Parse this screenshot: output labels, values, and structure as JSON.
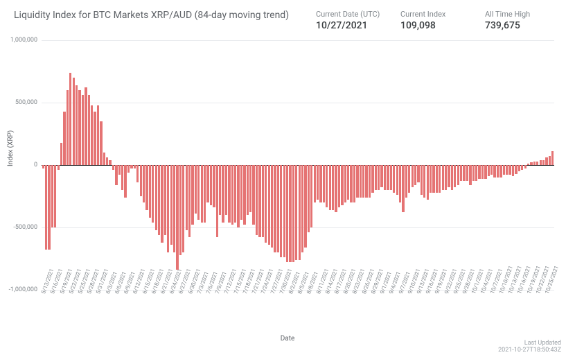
{
  "header": {
    "title": "Liquidity Index for BTC Markets XRP/AUD (84-day moving trend)",
    "metrics": [
      {
        "label": "Current Date (UTC)",
        "value": "10/27/2021"
      },
      {
        "label": "Current Index",
        "value": "109,098"
      },
      {
        "label": "All Time High",
        "value": "739,675"
      }
    ]
  },
  "chart": {
    "type": "bar",
    "ylabel": "Index (XRP)",
    "xlabel": "Date",
    "ylim": [
      -1000000,
      1000000
    ],
    "yticks": [
      -1000000,
      -500000,
      0,
      500000,
      1000000
    ],
    "ytick_labels": [
      "-1,000,000",
      "-500,000",
      "0",
      "500,000",
      "1,000,000"
    ],
    "xtick_every": 3,
    "bar_color": "#e57373",
    "grid_color": "#e8eaed",
    "zero_line_color": "#202124",
    "background_color": "#ffffff",
    "title_fontsize": 14,
    "label_fontsize": 10,
    "tick_fontsize": 9,
    "bar_gap_ratio": 0.25,
    "dates": [
      "5/13/2021",
      "5/14/2021",
      "5/15/2021",
      "5/16/2021",
      "5/17/2021",
      "5/18/2021",
      "5/19/2021",
      "5/20/2021",
      "5/21/2021",
      "5/22/2021",
      "5/23/2021",
      "5/24/2021",
      "5/25/2021",
      "5/26/2021",
      "5/27/2021",
      "5/28/2021",
      "5/29/2021",
      "5/30/2021",
      "5/31/2021",
      "6/1/2021",
      "6/2/2021",
      "6/3/2021",
      "6/4/2021",
      "6/5/2021",
      "6/6/2021",
      "6/7/2021",
      "6/8/2021",
      "6/9/2021",
      "6/10/2021",
      "6/11/2021",
      "6/12/2021",
      "6/13/2021",
      "6/14/2021",
      "6/15/2021",
      "6/16/2021",
      "6/17/2021",
      "6/18/2021",
      "6/19/2021",
      "6/20/2021",
      "6/21/2021",
      "6/22/2021",
      "6/23/2021",
      "6/24/2021",
      "6/25/2021",
      "6/26/2021",
      "6/27/2021",
      "6/28/2021",
      "6/29/2021",
      "6/30/2021",
      "7/1/2021",
      "7/2/2021",
      "7/3/2021",
      "7/4/2021",
      "7/5/2021",
      "7/6/2021",
      "7/7/2021",
      "7/8/2021",
      "7/9/2021",
      "7/10/2021",
      "7/11/2021",
      "7/12/2021",
      "7/13/2021",
      "7/14/2021",
      "7/15/2021",
      "7/16/2021",
      "7/17/2021",
      "7/18/2021",
      "7/19/2021",
      "7/20/2021",
      "7/21/2021",
      "7/22/2021",
      "7/23/2021",
      "7/24/2021",
      "7/25/2021",
      "7/26/2021",
      "7/27/2021",
      "7/28/2021",
      "7/29/2021",
      "7/30/2021",
      "7/31/2021",
      "8/1/2021",
      "8/2/2021",
      "8/3/2021",
      "8/4/2021",
      "8/5/2021",
      "8/6/2021",
      "8/7/2021",
      "8/8/2021",
      "8/9/2021",
      "8/10/2021",
      "8/11/2021",
      "8/12/2021",
      "8/13/2021",
      "8/14/2021",
      "8/15/2021",
      "8/16/2021",
      "8/17/2021",
      "8/18/2021",
      "8/19/2021",
      "8/20/2021",
      "8/21/2021",
      "8/22/2021",
      "8/23/2021",
      "8/24/2021",
      "8/25/2021",
      "8/26/2021",
      "8/27/2021",
      "8/28/2021",
      "8/29/2021",
      "8/30/2021",
      "8/31/2021",
      "9/1/2021",
      "9/2/2021",
      "9/3/2021",
      "9/4/2021",
      "9/5/2021",
      "9/6/2021",
      "9/7/2021",
      "9/8/2021",
      "9/9/2021",
      "9/10/2021",
      "9/11/2021",
      "9/12/2021",
      "9/13/2021",
      "9/14/2021",
      "9/15/2021",
      "9/16/2021",
      "9/17/2021",
      "9/18/2021",
      "9/19/2021",
      "9/20/2021",
      "9/21/2021",
      "9/22/2021",
      "9/23/2021",
      "9/24/2021",
      "9/25/2021",
      "9/26/2021",
      "9/27/2021",
      "9/28/2021",
      "9/29/2021",
      "9/30/2021",
      "10/1/2021",
      "10/2/2021",
      "10/3/2021",
      "10/4/2021",
      "10/5/2021",
      "10/6/2021",
      "10/7/2021",
      "10/8/2021",
      "10/9/2021",
      "10/10/2021",
      "10/11/2021",
      "10/12/2021",
      "10/13/2021",
      "10/14/2021",
      "10/15/2021",
      "10/16/2021",
      "10/17/2021",
      "10/18/2021",
      "10/19/2021",
      "10/20/2021",
      "10/21/2021",
      "10/22/2021",
      "10/23/2021",
      "10/24/2021",
      "10/25/2021",
      "10/26/2021",
      "10/27/2021"
    ],
    "values": [
      -30000,
      -680000,
      -680000,
      -500000,
      -500000,
      -40000,
      180000,
      430000,
      600000,
      739675,
      700000,
      640000,
      600000,
      560000,
      620000,
      560000,
      480000,
      430000,
      480000,
      350000,
      100000,
      60000,
      40000,
      -40000,
      -160000,
      -80000,
      -200000,
      -260000,
      -60000,
      -30000,
      -30000,
      -140000,
      -250000,
      -300000,
      -360000,
      -420000,
      -460000,
      -520000,
      -560000,
      -620000,
      -560000,
      -700000,
      -640000,
      -700000,
      -840000,
      -720000,
      -700000,
      -520000,
      -580000,
      -480000,
      -390000,
      -440000,
      -460000,
      -460000,
      -300000,
      -320000,
      -340000,
      -580000,
      -400000,
      -460000,
      -400000,
      -460000,
      -480000,
      -460000,
      -500000,
      -440000,
      -480000,
      -400000,
      -380000,
      -480000,
      -560000,
      -580000,
      -580000,
      -620000,
      -640000,
      -660000,
      -700000,
      -700000,
      -740000,
      -740000,
      -780000,
      -780000,
      -780000,
      -760000,
      -760000,
      -700000,
      -660000,
      -540000,
      -500000,
      -300000,
      -280000,
      -300000,
      -300000,
      -340000,
      -360000,
      -360000,
      -380000,
      -340000,
      -320000,
      -300000,
      -280000,
      -300000,
      -300000,
      -260000,
      -260000,
      -260000,
      -260000,
      -260000,
      -220000,
      -200000,
      -200000,
      -180000,
      -200000,
      -200000,
      -200000,
      -220000,
      -240000,
      -300000,
      -380000,
      -260000,
      -220000,
      -180000,
      -160000,
      -140000,
      -240000,
      -260000,
      -280000,
      -220000,
      -220000,
      -220000,
      -220000,
      -200000,
      -200000,
      -180000,
      -200000,
      -180000,
      -160000,
      -130000,
      -130000,
      -130000,
      -160000,
      -130000,
      -130000,
      -110000,
      -110000,
      -110000,
      -90000,
      -80000,
      -100000,
      -100000,
      -100000,
      -80000,
      -80000,
      -80000,
      -90000,
      -70000,
      -50000,
      -40000,
      -30000,
      10000,
      20000,
      30000,
      30000,
      40000,
      40000,
      60000,
      70000,
      109098
    ]
  },
  "footer": {
    "last_updated_label": "Last Updated",
    "last_updated_value": "2021-10-27T18:50:43Z"
  }
}
